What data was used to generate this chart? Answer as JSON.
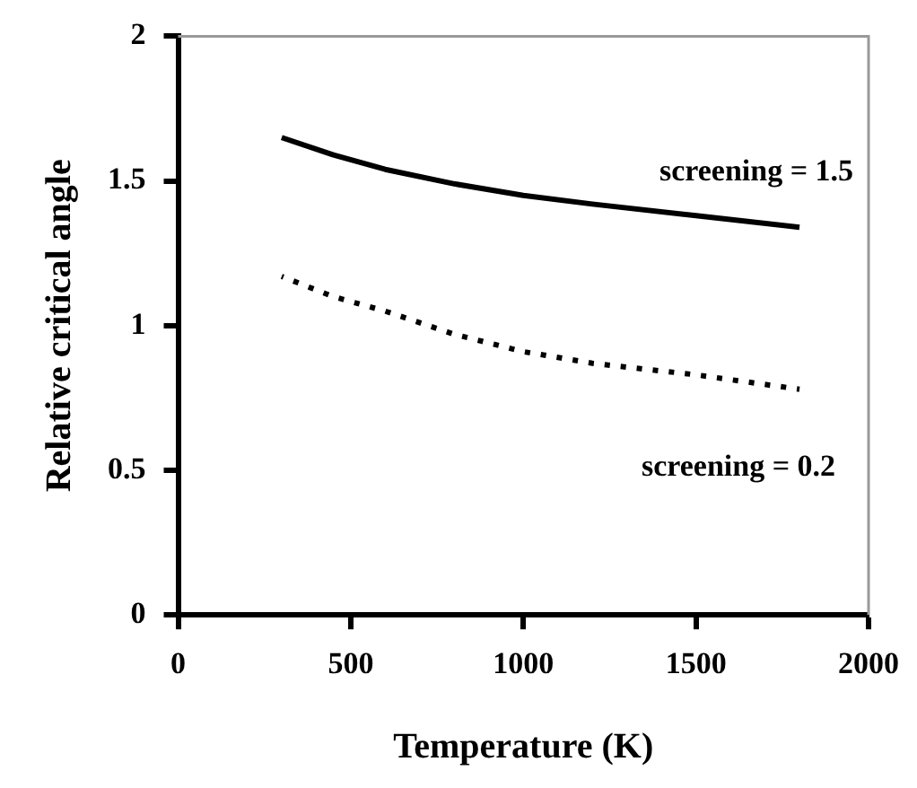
{
  "chart_data": {
    "type": "line",
    "xlabel": "Temperature (K)",
    "ylabel": "Relative critical angle",
    "xlim": [
      0,
      2000
    ],
    "xticks": [
      0,
      500,
      1000,
      1500,
      2000
    ],
    "ylim": [
      0,
      2
    ],
    "yticks": [
      0,
      0.5,
      1,
      1.5,
      2
    ],
    "grid": false,
    "legend": false,
    "marker": "none",
    "series": [
      {
        "name": "screening = 1.5",
        "color": "#000000",
        "line_style": "solid",
        "x": [
          300,
          450,
          600,
          800,
          1000,
          1200,
          1500,
          1800
        ],
        "values": [
          1.65,
          1.59,
          1.54,
          1.49,
          1.45,
          1.42,
          1.38,
          1.34
        ]
      },
      {
        "name": "screening = 0.2",
        "color": "#000000",
        "line_style": "dotted",
        "x": [
          300,
          450,
          600,
          800,
          1000,
          1200,
          1500,
          1800
        ],
        "values": [
          1.17,
          1.1,
          1.05,
          0.97,
          0.91,
          0.87,
          0.83,
          0.78
        ]
      }
    ]
  }
}
